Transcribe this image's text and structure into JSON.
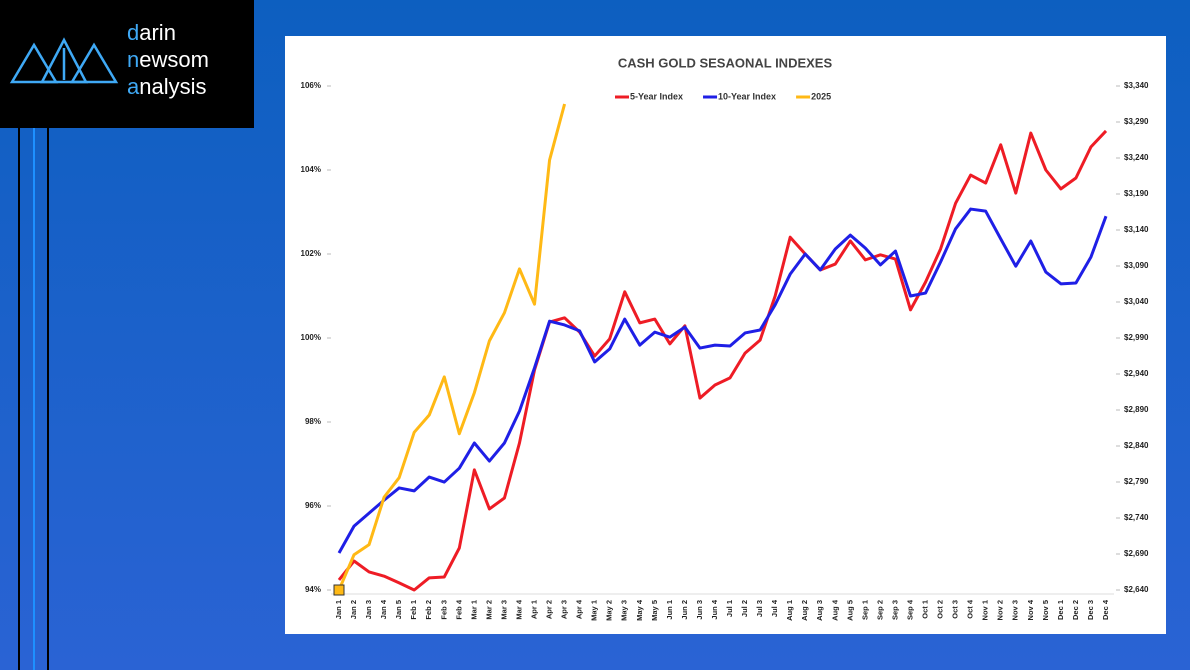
{
  "logo": {
    "lines": [
      "darin",
      "newsom",
      "analysis"
    ]
  },
  "chart_data": {
    "type": "line",
    "title": "CASH GOLD SESAONAL INDEXES",
    "categories": [
      "Jan 1",
      "Jan 2",
      "Jan 3",
      "Jan 4",
      "Jan 5",
      "Feb 1",
      "Feb 2",
      "Feb 3",
      "Feb 4",
      "Mar 1",
      "Mar 2",
      "Mar 3",
      "Mar 4",
      "Apr 1",
      "Apr 2",
      "Apr 3",
      "Apr 4",
      "May 1",
      "May 2",
      "May 3",
      "May 4",
      "May 5",
      "Jun 1",
      "Jun 2",
      "Jun 3",
      "Jun 4",
      "Jul 1",
      "Jul 2",
      "Jul 3",
      "Jul 4",
      "Aug 1",
      "Aug 2",
      "Aug 3",
      "Aug 4",
      "Aug 5",
      "Sep 1",
      "Sep 2",
      "Sep 3",
      "Sep 4",
      "Oct 1",
      "Oct 2",
      "Oct 3",
      "Oct 4",
      "Nov 1",
      "Nov 2",
      "Nov 3",
      "Nov 4",
      "Nov 5",
      "Dec 1",
      "Dec 2",
      "Dec 3",
      "Dec 4"
    ],
    "series": [
      {
        "name": "5-Year Index",
        "color": "#ee1c25",
        "values": [
          94.24,
          94.69,
          94.43,
          94.33,
          94.17,
          94.0,
          94.29,
          94.31,
          95.0,
          96.86,
          95.93,
          96.19,
          97.5,
          99.24,
          100.38,
          100.48,
          100.14,
          99.57,
          99.98,
          101.1,
          100.36,
          100.45,
          99.86,
          100.29,
          98.57,
          98.88,
          99.05,
          99.64,
          99.95,
          101.0,
          102.4,
          102.0,
          101.62,
          101.76,
          102.31,
          101.86,
          101.98,
          101.88,
          100.67,
          101.33,
          102.12,
          103.21,
          103.88,
          103.69,
          104.6,
          103.45,
          104.88,
          104.0,
          103.55,
          103.81,
          104.55,
          104.93
        ]
      },
      {
        "name": "10-Year Index",
        "color": "#1f1fe6",
        "values": [
          94.88,
          95.52,
          95.83,
          96.14,
          96.43,
          96.36,
          96.69,
          96.57,
          96.9,
          97.5,
          97.07,
          97.5,
          98.26,
          99.29,
          100.4,
          100.31,
          100.17,
          99.43,
          99.74,
          100.45,
          99.83,
          100.14,
          100.02,
          100.26,
          99.76,
          99.83,
          99.81,
          100.12,
          100.19,
          100.79,
          101.52,
          102.0,
          101.62,
          102.12,
          102.45,
          102.14,
          101.74,
          102.07,
          101.0,
          101.07,
          101.81,
          102.6,
          103.07,
          103.02,
          102.36,
          101.71,
          102.31,
          101.57,
          101.29,
          101.31,
          101.93,
          102.9
        ]
      },
      {
        "name": "2025",
        "color": "#ffb915",
        "axis": "y2",
        "values": [
          2640,
          2689,
          2703,
          2769,
          2796,
          2859,
          2883,
          2936,
          2857,
          2914,
          2986,
          3025,
          3086,
          3037,
          3237,
          3315,
          null,
          null,
          null,
          null,
          null,
          null,
          null,
          null,
          null,
          null,
          null,
          null,
          null,
          null,
          null,
          null,
          null,
          null,
          null,
          null,
          null,
          null,
          null,
          null,
          null,
          null,
          null,
          null,
          null,
          null,
          null,
          null,
          null,
          null,
          null,
          null
        ]
      }
    ],
    "ylim": [
      94,
      106
    ],
    "yticks": [
      {
        "value": 94,
        "label": "94%"
      },
      {
        "value": 96,
        "label": "96%"
      },
      {
        "value": 98,
        "label": "98%"
      },
      {
        "value": 100,
        "label": "100%"
      },
      {
        "value": 102,
        "label": "102%"
      },
      {
        "value": 104,
        "label": "104%"
      },
      {
        "value": 106,
        "label": "106%"
      }
    ],
    "y2lim": [
      2640,
      3340
    ],
    "y2ticks": [
      {
        "value": 2640,
        "label": "$2,640"
      },
      {
        "value": 2690,
        "label": "$2,690"
      },
      {
        "value": 2740,
        "label": "$2,740"
      },
      {
        "value": 2790,
        "label": "$2,790"
      },
      {
        "value": 2840,
        "label": "$2,840"
      },
      {
        "value": 2890,
        "label": "$2,890"
      },
      {
        "value": 2940,
        "label": "$2,940"
      },
      {
        "value": 2990,
        "label": "$2,990"
      },
      {
        "value": 3040,
        "label": "$3,040"
      },
      {
        "value": 3090,
        "label": "$3,090"
      },
      {
        "value": 3140,
        "label": "$3,140"
      },
      {
        "value": 3190,
        "label": "$3,190"
      },
      {
        "value": 3240,
        "label": "$3,240"
      },
      {
        "value": 3290,
        "label": "$3,290"
      },
      {
        "value": 3340,
        "label": "$3,340"
      }
    ],
    "grid": false,
    "legend": "top"
  }
}
